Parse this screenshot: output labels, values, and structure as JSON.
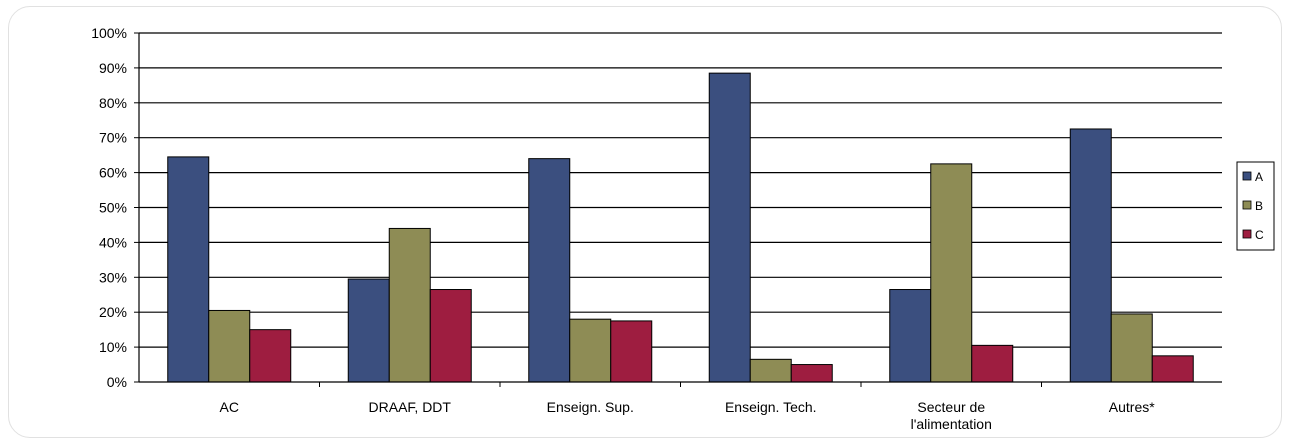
{
  "chart_data": {
    "type": "bar",
    "categories": [
      [
        "AC"
      ],
      [
        "DRAAF, DDT"
      ],
      [
        "Enseign. Sup."
      ],
      [
        "Enseign. Tech."
      ],
      [
        "Secteur de",
        "l'alimentation"
      ],
      [
        "Autres*"
      ]
    ],
    "series": [
      {
        "name": "A",
        "color": "#3b4f7f",
        "values": [
          64.5,
          29.5,
          64,
          88.5,
          26.5,
          72.5
        ]
      },
      {
        "name": "B",
        "color": "#8e8c55",
        "values": [
          20.5,
          44,
          18,
          6.5,
          62.5,
          19.5
        ]
      },
      {
        "name": "C",
        "color": "#9e1d40",
        "values": [
          15,
          26.5,
          17.5,
          5,
          10.5,
          7.5
        ]
      }
    ],
    "yticks": [
      "0%",
      "10%",
      "20%",
      "30%",
      "40%",
      "50%",
      "60%",
      "70%",
      "80%",
      "90%",
      "100%"
    ],
    "ylim": [
      0,
      100
    ],
    "grid": true,
    "legend_position": "right",
    "title": "",
    "xlabel": "",
    "ylabel": ""
  }
}
